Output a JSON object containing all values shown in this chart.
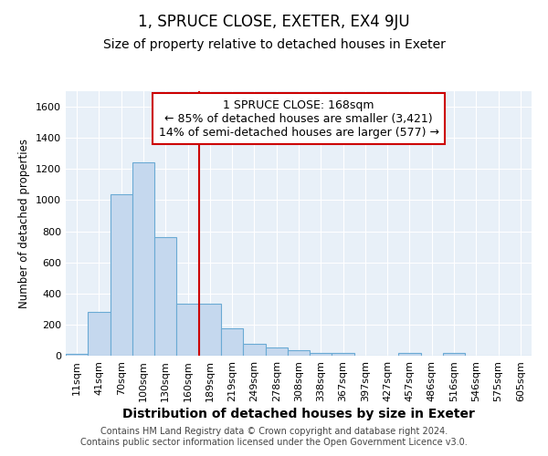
{
  "title": "1, SPRUCE CLOSE, EXETER, EX4 9JU",
  "subtitle": "Size of property relative to detached houses in Exeter",
  "xlabel": "Distribution of detached houses by size in Exeter",
  "ylabel": "Number of detached properties",
  "bar_color": "#c5d8ee",
  "bar_edge_color": "#6aaad4",
  "background_color": "#e8f0f8",
  "grid_color": "#ffffff",
  "vline_color": "#cc0000",
  "categories": [
    "11sqm",
    "41sqm",
    "70sqm",
    "100sqm",
    "130sqm",
    "160sqm",
    "189sqm",
    "219sqm",
    "249sqm",
    "278sqm",
    "308sqm",
    "338sqm",
    "367sqm",
    "397sqm",
    "427sqm",
    "457sqm",
    "486sqm",
    "516sqm",
    "546sqm",
    "575sqm",
    "605sqm"
  ],
  "values": [
    10,
    280,
    1040,
    1245,
    760,
    335,
    335,
    175,
    75,
    50,
    35,
    20,
    15,
    0,
    0,
    15,
    0,
    15,
    0,
    0,
    0
  ],
  "ylim": [
    0,
    1700
  ],
  "yticks": [
    0,
    200,
    400,
    600,
    800,
    1000,
    1200,
    1400,
    1600
  ],
  "annotation_text": "1 SPRUCE CLOSE: 168sqm\n← 85% of detached houses are smaller (3,421)\n14% of semi-detached houses are larger (577) →",
  "footer_text": "Contains HM Land Registry data © Crown copyright and database right 2024.\nContains public sector information licensed under the Open Government Licence v3.0.",
  "title_fontsize": 12,
  "subtitle_fontsize": 10,
  "ylabel_fontsize": 8.5,
  "xlabel_fontsize": 10,
  "tick_fontsize": 8,
  "annotation_fontsize": 9,
  "footer_fontsize": 7
}
